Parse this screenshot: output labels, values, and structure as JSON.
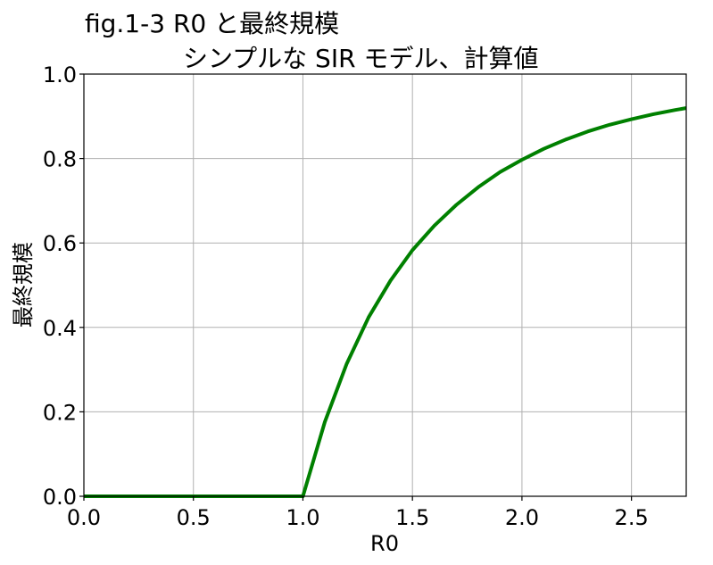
{
  "chart_data": {
    "type": "line",
    "title_line1": "fig.1-3  R0 と最終規模",
    "title_line2": "シンプルな SIR モデル、計算値",
    "xlabel": "R0",
    "ylabel": "最終規模",
    "xlim": [
      0.0,
      2.75
    ],
    "ylim": [
      0.0,
      1.0
    ],
    "x_ticks": [
      0.0,
      0.5,
      1.0,
      1.5,
      2.0,
      2.5
    ],
    "x_tick_labels": [
      "0.0",
      "0.5",
      "1.0",
      "1.5",
      "2.0",
      "2.5"
    ],
    "y_ticks": [
      0.0,
      0.2,
      0.4,
      0.6,
      0.8,
      1.0
    ],
    "y_tick_labels": [
      "0.0",
      "0.2",
      "0.4",
      "0.6",
      "0.8",
      "1.0"
    ],
    "grid": true,
    "series": [
      {
        "color": "#008000",
        "x": [
          0.0,
          0.1,
          0.2,
          0.3,
          0.4,
          0.5,
          0.6,
          0.7,
          0.8,
          0.9,
          1.0,
          1.1,
          1.2,
          1.3,
          1.4,
          1.5,
          1.6,
          1.7,
          1.8,
          1.9,
          2.0,
          2.1,
          2.2,
          2.3,
          2.4,
          2.5,
          2.6,
          2.7,
          2.8
        ],
        "y": [
          0.0,
          0.0,
          0.0,
          0.0,
          0.0,
          0.0,
          0.0,
          0.0,
          0.0,
          0.0,
          0.0,
          0.176,
          0.314,
          0.424,
          0.511,
          0.583,
          0.641,
          0.69,
          0.732,
          0.768,
          0.797,
          0.823,
          0.845,
          0.864,
          0.88,
          0.893,
          0.905,
          0.915,
          0.924
        ]
      }
    ]
  }
}
